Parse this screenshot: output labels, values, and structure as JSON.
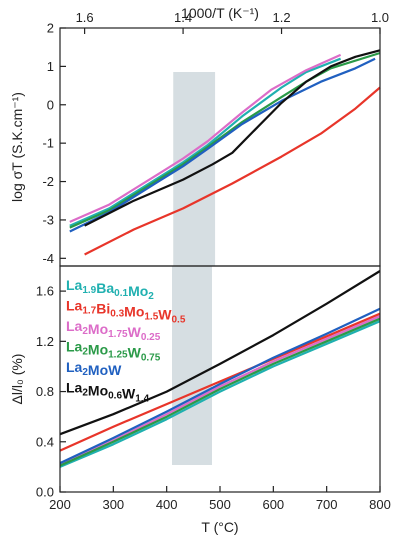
{
  "chart_data": [
    {
      "type": "line",
      "xlabel": "1000/T (K⁻¹)",
      "ylabel": "log σT (S.K.cm⁻¹)",
      "xlim": [
        1.65,
        1.0
      ],
      "ylim": [
        -4.2,
        2
      ],
      "xticks": [
        "1.6",
        "1.4",
        "1.2",
        "1.0"
      ],
      "xtick_values": [
        1.6,
        1.4,
        1.2,
        1.0
      ],
      "yticks": [
        "-4",
        "-3",
        "-2",
        "-1",
        "0",
        "1",
        "2"
      ],
      "ytick_values": [
        -4,
        -3,
        -2,
        -1,
        0,
        1,
        2
      ],
      "shaded_band_x": [
        1.42,
        1.335
      ],
      "series": [
        {
          "color": "#20b0b0",
          "points": [
            [
              1.63,
              -3.15
            ],
            [
              1.55,
              -2.7
            ],
            [
              1.45,
              -1.9
            ],
            [
              1.4,
              -1.5
            ],
            [
              1.35,
              -1.05
            ],
            [
              1.28,
              -0.3
            ],
            [
              1.2,
              0.45
            ],
            [
              1.15,
              0.85
            ],
            [
              1.08,
              1.2
            ]
          ]
        },
        {
          "color": "#e8352a",
          "points": [
            [
              1.6,
              -3.9
            ],
            [
              1.5,
              -3.25
            ],
            [
              1.4,
              -2.7
            ],
            [
              1.3,
              -2.05
            ],
            [
              1.2,
              -1.35
            ],
            [
              1.12,
              -0.75
            ],
            [
              1.05,
              -0.1
            ],
            [
              1.0,
              0.45
            ]
          ]
        },
        {
          "color": "#dc6cc8",
          "points": [
            [
              1.63,
              -3.05
            ],
            [
              1.55,
              -2.6
            ],
            [
              1.45,
              -1.8
            ],
            [
              1.4,
              -1.4
            ],
            [
              1.35,
              -0.95
            ],
            [
              1.28,
              -0.2
            ],
            [
              1.22,
              0.4
            ],
            [
              1.15,
              0.9
            ],
            [
              1.08,
              1.3
            ]
          ]
        },
        {
          "color": "#2a9a48",
          "points": [
            [
              1.63,
              -3.2
            ],
            [
              1.55,
              -2.75
            ],
            [
              1.45,
              -1.95
            ],
            [
              1.4,
              -1.55
            ],
            [
              1.35,
              -1.1
            ],
            [
              1.28,
              -0.45
            ],
            [
              1.2,
              0.2
            ],
            [
              1.15,
              0.6
            ],
            [
              1.1,
              0.95
            ],
            [
              1.0,
              1.35
            ]
          ]
        },
        {
          "color": "#2060c0",
          "points": [
            [
              1.63,
              -3.3
            ],
            [
              1.55,
              -2.8
            ],
            [
              1.45,
              -2.0
            ],
            [
              1.4,
              -1.6
            ],
            [
              1.35,
              -1.15
            ],
            [
              1.28,
              -0.5
            ],
            [
              1.2,
              0.1
            ],
            [
              1.12,
              0.6
            ],
            [
              1.05,
              0.95
            ],
            [
              1.01,
              1.2
            ]
          ]
        },
        {
          "color": "#111111",
          "points": [
            [
              1.6,
              -3.15
            ],
            [
              1.5,
              -2.5
            ],
            [
              1.4,
              -1.95
            ],
            [
              1.34,
              -1.55
            ],
            [
              1.3,
              -1.25
            ],
            [
              1.25,
              -0.6
            ],
            [
              1.2,
              0.05
            ],
            [
              1.15,
              0.6
            ],
            [
              1.1,
              1.0
            ],
            [
              1.05,
              1.25
            ],
            [
              1.0,
              1.42
            ]
          ]
        }
      ]
    },
    {
      "type": "line",
      "xlabel": "T (°C)",
      "ylabel": "Δl/l₀ (%)",
      "xlim": [
        200,
        800
      ],
      "ylim": [
        0.0,
        1.8
      ],
      "xticks": [
        "200",
        "300",
        "400",
        "500",
        "600",
        "700",
        "800"
      ],
      "xtick_values": [
        200,
        300,
        400,
        500,
        600,
        700,
        800
      ],
      "yticks": [
        "0.0",
        "0.4",
        "0.8",
        "1.2",
        "1.6"
      ],
      "ytick_values": [
        0.0,
        0.4,
        0.8,
        1.2,
        1.6
      ],
      "shaded_band_x": [
        410,
        485
      ],
      "series": [
        {
          "name": "La1.9Ba0.1Mo2",
          "color": "#20b0b0",
          "points": [
            [
              200,
              0.2
            ],
            [
              300,
              0.38
            ],
            [
              400,
              0.58
            ],
            [
              500,
              0.8
            ],
            [
              600,
              1.0
            ],
            [
              700,
              1.18
            ],
            [
              800,
              1.36
            ]
          ]
        },
        {
          "name": "La1.7Bi0.3Mo1.5W0.5",
          "color": "#e8352a",
          "points": [
            [
              200,
              0.33
            ],
            [
              300,
              0.52
            ],
            [
              400,
              0.7
            ],
            [
              500,
              0.88
            ],
            [
              600,
              1.06
            ],
            [
              700,
              1.24
            ],
            [
              800,
              1.42
            ]
          ]
        },
        {
          "name": "La2Mo1.75W0.25",
          "color": "#dc6cc8",
          "points": [
            [
              200,
              0.22
            ],
            [
              300,
              0.41
            ],
            [
              400,
              0.62
            ],
            [
              500,
              0.84
            ],
            [
              600,
              1.04
            ],
            [
              700,
              1.22
            ],
            [
              800,
              1.4
            ]
          ]
        },
        {
          "name": "La2Mo1.25W0.75",
          "color": "#2a9a48",
          "points": [
            [
              200,
              0.21
            ],
            [
              300,
              0.4
            ],
            [
              400,
              0.6
            ],
            [
              500,
              0.82
            ],
            [
              600,
              1.02
            ],
            [
              700,
              1.2
            ],
            [
              800,
              1.38
            ]
          ]
        },
        {
          "name": "La2MoW",
          "color": "#2060c0",
          "points": [
            [
              200,
              0.23
            ],
            [
              300,
              0.43
            ],
            [
              400,
              0.64
            ],
            [
              500,
              0.86
            ],
            [
              600,
              1.07
            ],
            [
              700,
              1.26
            ],
            [
              800,
              1.46
            ]
          ]
        },
        {
          "name": "La2Mo0.6W1.4",
          "color": "#111111",
          "points": [
            [
              200,
              0.46
            ],
            [
              300,
              0.62
            ],
            [
              400,
              0.8
            ],
            [
              500,
              1.02
            ],
            [
              600,
              1.25
            ],
            [
              700,
              1.5
            ],
            [
              800,
              1.76
            ]
          ]
        }
      ]
    }
  ],
  "legend": [
    {
      "color": "#20b0b0",
      "parts": [
        [
          "La",
          ""
        ],
        [
          "1.9",
          "sub"
        ],
        [
          "Ba",
          ""
        ],
        [
          "0.1",
          "sub"
        ],
        [
          "Mo",
          ""
        ],
        [
          "2",
          "sub"
        ]
      ]
    },
    {
      "color": "#e8352a",
      "parts": [
        [
          "La",
          ""
        ],
        [
          "1.7",
          "sub"
        ],
        [
          "Bi",
          ""
        ],
        [
          "0.3",
          "sub"
        ],
        [
          "Mo",
          ""
        ],
        [
          "1.5",
          "sub"
        ],
        [
          "W",
          ""
        ],
        [
          "0.5",
          "sub"
        ]
      ]
    },
    {
      "color": "#dc6cc8",
      "parts": [
        [
          "La",
          ""
        ],
        [
          "2",
          "sub"
        ],
        [
          "Mo",
          ""
        ],
        [
          "1.75",
          "sub"
        ],
        [
          "W",
          ""
        ],
        [
          "0.25",
          "sub"
        ]
      ]
    },
    {
      "color": "#2a9a48",
      "parts": [
        [
          "La",
          ""
        ],
        [
          "2",
          "sub"
        ],
        [
          "Mo",
          ""
        ],
        [
          "1.25",
          "sub"
        ],
        [
          "W",
          ""
        ],
        [
          "0.75",
          "sub"
        ]
      ]
    },
    {
      "color": "#2060c0",
      "parts": [
        [
          "La",
          ""
        ],
        [
          "2",
          "sub"
        ],
        [
          "MoW",
          ""
        ]
      ]
    },
    {
      "color": "#111111",
      "parts": [
        [
          "La",
          ""
        ],
        [
          "2",
          "sub"
        ],
        [
          "Mo",
          ""
        ],
        [
          "0.6",
          "sub"
        ],
        [
          "W",
          ""
        ],
        [
          "1.4",
          "sub"
        ]
      ]
    }
  ]
}
